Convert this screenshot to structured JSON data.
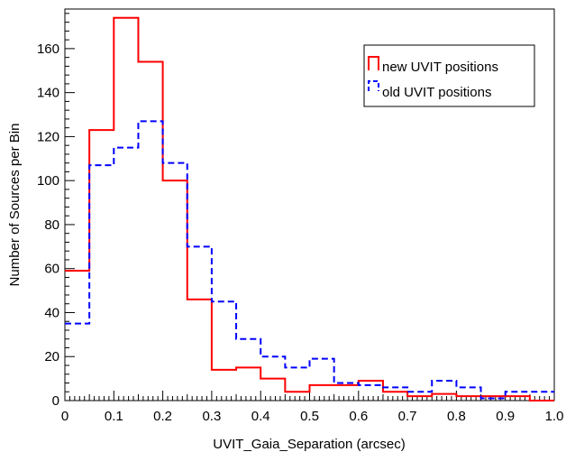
{
  "chart_data": {
    "type": "histogram",
    "title": "",
    "xlabel": "UVIT_Gaia_Separation (arcsec)",
    "ylabel": "Number of Sources per Bin",
    "xlim": [
      0,
      1.0
    ],
    "ylim": [
      0,
      178
    ],
    "x_ticks": [
      "0",
      "0.1",
      "0.2",
      "0.3",
      "0.4",
      "0.5",
      "0.6",
      "0.7",
      "0.8",
      "0.9",
      "1.0"
    ],
    "y_ticks": [
      "0",
      "20",
      "40",
      "60",
      "80",
      "100",
      "120",
      "140",
      "160"
    ],
    "bin_edges": [
      0,
      0.05,
      0.1,
      0.15,
      0.2,
      0.25,
      0.3,
      0.35,
      0.4,
      0.45,
      0.5,
      0.55,
      0.6,
      0.65,
      0.7,
      0.75,
      0.8,
      0.85,
      0.9,
      0.95,
      1.0
    ],
    "legend_position": "top-right",
    "grid": false,
    "series": [
      {
        "name": "new UVIT positions",
        "color": "#ff0000",
        "style": "solid",
        "values": [
          59,
          123,
          174,
          154,
          100,
          46,
          14,
          15,
          10,
          4,
          7,
          7,
          9,
          4,
          2,
          3,
          2,
          2,
          2,
          0
        ]
      },
      {
        "name": "old UVIT positions",
        "color": "#0000ff",
        "style": "dashed",
        "values": [
          35,
          107,
          115,
          127,
          108,
          70,
          45,
          28,
          20,
          15,
          19,
          8,
          7,
          6,
          4,
          9,
          6,
          1,
          4,
          4
        ]
      }
    ]
  }
}
